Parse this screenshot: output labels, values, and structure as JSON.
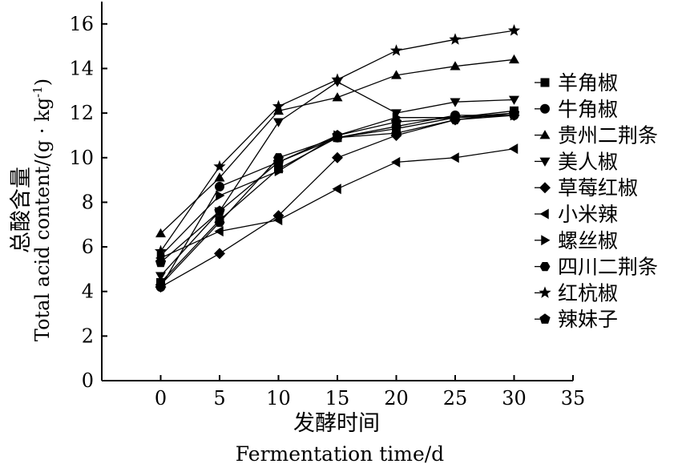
{
  "chart_data": {
    "type": "line",
    "xlabel_zh": "发酵时间",
    "xlabel_en": "Fermentation time/d",
    "ylabel_zh": "总酸含量",
    "ylabel_en": "Total acid content/(g · kg",
    "ylabel_sup": "-1",
    "ylabel_close": ")",
    "xlim": [
      -5,
      35
    ],
    "ylim": [
      0,
      17
    ],
    "xticks": [
      0,
      5,
      10,
      15,
      20,
      25,
      30,
      35
    ],
    "yticks": [
      0,
      2,
      4,
      6,
      8,
      10,
      12,
      14,
      16
    ],
    "x": [
      0,
      5,
      10,
      15,
      20,
      25,
      30
    ],
    "series": [
      {
        "name": "羊角椒",
        "marker": "square",
        "values": [
          4.4,
          7.2,
          9.5,
          10.9,
          11.3,
          11.8,
          12.1
        ]
      },
      {
        "name": "牛角椒",
        "marker": "circle",
        "values": [
          4.2,
          8.7,
          9.8,
          10.9,
          11.4,
          11.9,
          11.9
        ]
      },
      {
        "name": "贵州二荆条",
        "marker": "triangle-up",
        "values": [
          6.6,
          9.1,
          12.1,
          12.7,
          13.7,
          14.1,
          14.4
        ]
      },
      {
        "name": "美人椒",
        "marker": "triangle-down",
        "values": [
          4.7,
          7.6,
          11.6,
          13.4,
          12.0,
          12.5,
          12.6
        ]
      },
      {
        "name": "草莓红椒",
        "marker": "diamond",
        "values": [
          4.2,
          5.7,
          7.4,
          10.0,
          11.0,
          11.7,
          11.9
        ]
      },
      {
        "name": "小米辣",
        "marker": "triangle-left",
        "values": [
          5.5,
          6.7,
          7.2,
          8.6,
          9.8,
          10.0,
          10.4
        ]
      },
      {
        "name": "螺丝椒",
        "marker": "triangle-right",
        "values": [
          5.6,
          8.3,
          9.4,
          11.0,
          11.8,
          11.8,
          11.9
        ]
      },
      {
        "name": "四川二荆条",
        "marker": "hexagon",
        "values": [
          4.3,
          7.1,
          10.0,
          10.9,
          11.1,
          11.7,
          12.0
        ]
      },
      {
        "name": "红杭椒",
        "marker": "star",
        "values": [
          5.8,
          9.6,
          12.3,
          13.5,
          14.8,
          15.3,
          15.7
        ]
      },
      {
        "name": "辣妹子",
        "marker": "pentagon",
        "values": [
          5.3,
          7.6,
          9.8,
          11.0,
          11.6,
          11.8,
          12.0
        ]
      }
    ]
  }
}
